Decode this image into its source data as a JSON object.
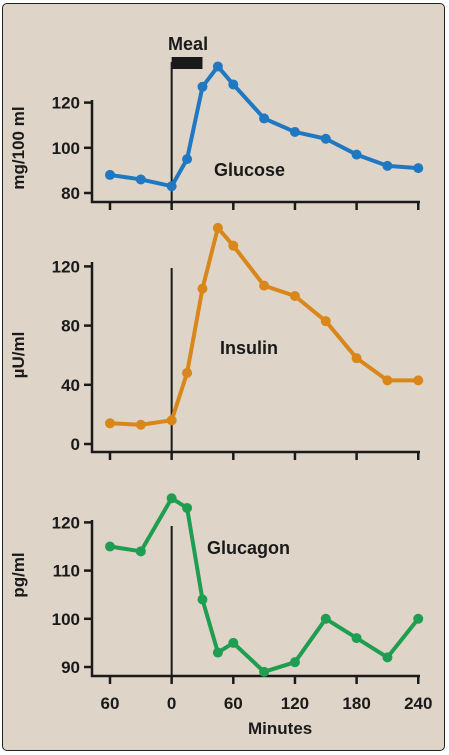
{
  "chart_data": {
    "type": "line",
    "meal_label": "Meal",
    "xlabel": "Minutes",
    "x_ticks": [
      {
        "value": -60,
        "label": "60"
      },
      {
        "value": 0,
        "label": "0"
      },
      {
        "value": 60,
        "label": "60"
      },
      {
        "value": 120,
        "label": "120"
      },
      {
        "value": 180,
        "label": "180"
      },
      {
        "value": 240,
        "label": "240"
      }
    ],
    "xlim": [
      -60,
      240
    ],
    "meal_marker": {
      "start": 0,
      "end": 30
    },
    "panels": [
      {
        "name": "Glucose",
        "ylabel": "mg/100 ml",
        "color": "#1f78c1",
        "ylim": [
          80,
          125
        ],
        "y_ticks": [
          80,
          100,
          120
        ],
        "x": [
          -60,
          -30,
          0,
          15,
          30,
          45,
          60,
          90,
          120,
          150,
          180,
          210,
          240
        ],
        "values": [
          88,
          86,
          83,
          95,
          127,
          136,
          128,
          113,
          107,
          104,
          97,
          92,
          91
        ]
      },
      {
        "name": "Insulin",
        "ylabel": "µU/ml",
        "color": "#d9861a",
        "ylim": [
          0,
          120
        ],
        "y_ticks": [
          0,
          40,
          80,
          120
        ],
        "x": [
          -60,
          -30,
          0,
          15,
          30,
          45,
          60,
          90,
          120,
          150,
          180,
          210,
          240
        ],
        "values": [
          14,
          13,
          16,
          48,
          105,
          146,
          134,
          107,
          100,
          83,
          58,
          43,
          43
        ]
      },
      {
        "name": "Glucagon",
        "ylabel": "pg/ml",
        "color": "#1f9d50",
        "ylim": [
          90,
          120
        ],
        "y_ticks": [
          90,
          100,
          110,
          120
        ],
        "x": [
          -60,
          -30,
          0,
          15,
          30,
          45,
          60,
          90,
          120,
          150,
          180,
          210,
          240
        ],
        "values": [
          115,
          114,
          125,
          123,
          104,
          93,
          95,
          89,
          91,
          100,
          96,
          92,
          100
        ]
      }
    ]
  }
}
